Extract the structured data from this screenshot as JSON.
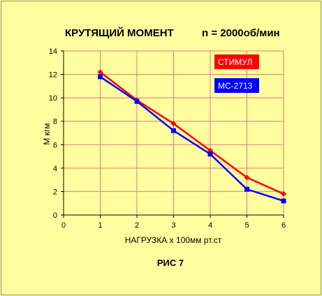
{
  "chart_data": {
    "type": "line",
    "title": "КРУТЯЩИЙ МОМЕНТ",
    "subtitle": "n = 2000об/мин",
    "xlabel": "НАГРУЗКА  x  100мм рт.ст",
    "ylabel": "М  кгм",
    "caption": "РИС 7",
    "xlim": [
      0,
      6
    ],
    "ylim": [
      0,
      14
    ],
    "x_ticks": [
      "0",
      "1",
      "2",
      "3",
      "4",
      "5",
      "6"
    ],
    "y_ticks": [
      "0",
      "2",
      "4",
      "6",
      "8",
      "10",
      "12",
      "14"
    ],
    "grid": true,
    "legend_position": "top-right",
    "series": [
      {
        "name": "СТИМУЛ",
        "color": "#ff0000",
        "marker": "diamond",
        "x": [
          1,
          2,
          3,
          4,
          5,
          6
        ],
        "y": [
          12.2,
          9.8,
          7.8,
          5.5,
          3.2,
          1.8
        ]
      },
      {
        "name": "МС-2713",
        "color": "#0000ff",
        "marker": "square",
        "x": [
          1,
          2,
          3,
          4,
          5,
          6
        ],
        "y": [
          11.8,
          9.7,
          7.2,
          5.2,
          2.2,
          1.2
        ]
      }
    ],
    "colors": {
      "background": "#ffffa0",
      "grid": "#e07878",
      "axis": "#000000"
    }
  }
}
